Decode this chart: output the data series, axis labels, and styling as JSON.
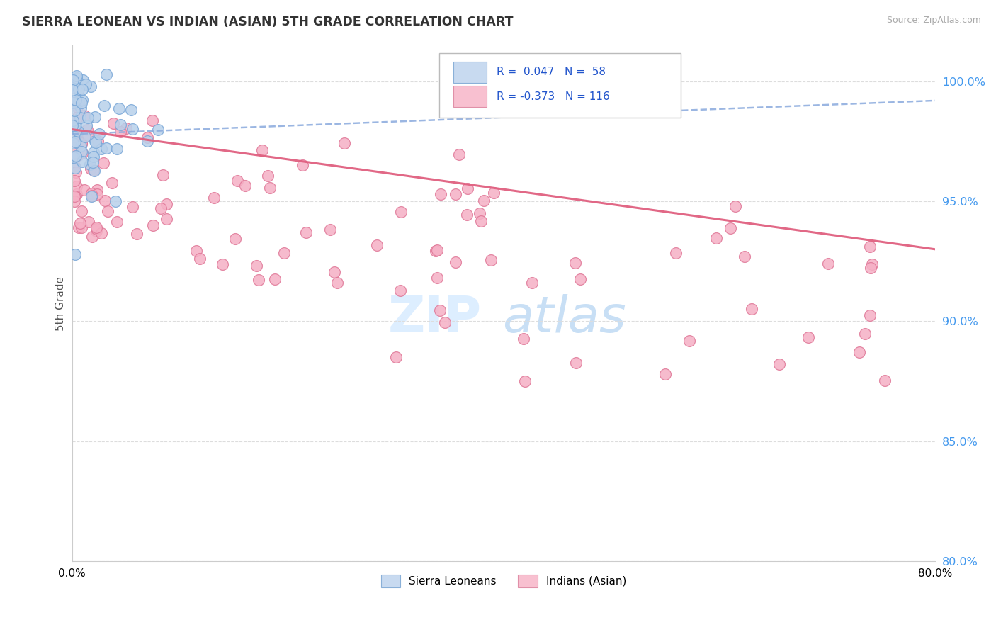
{
  "title": "SIERRA LEONEAN VS INDIAN (ASIAN) 5TH GRADE CORRELATION CHART",
  "source": "Source: ZipAtlas.com",
  "ylabel": "5th Grade",
  "xlim": [
    0.0,
    80.0
  ],
  "ylim": [
    80.0,
    101.5
  ],
  "yticks": [
    80.0,
    85.0,
    90.0,
    95.0,
    100.0
  ],
  "ytick_labels": [
    "80.0%",
    "85.0%",
    "90.0%",
    "95.0%",
    "100.0%"
  ],
  "sierra_R": 0.047,
  "sierra_N": 58,
  "indian_R": -0.373,
  "indian_N": 116,
  "sierra_color": "#b8d0ea",
  "sierra_edge": "#7aa8d8",
  "indian_color": "#f5b0c5",
  "indian_edge": "#e07898",
  "sierra_trend_color": "#8aaadd",
  "indian_trend_color": "#e06080",
  "legend_sierra_fill": "#c8daf0",
  "legend_sierra_edge": "#8ab0d8",
  "legend_indian_fill": "#f8c0d0",
  "legend_indian_edge": "#e090a8",
  "watermark_zip_color": "#ddeeff",
  "watermark_atlas_color": "#c8dff5"
}
